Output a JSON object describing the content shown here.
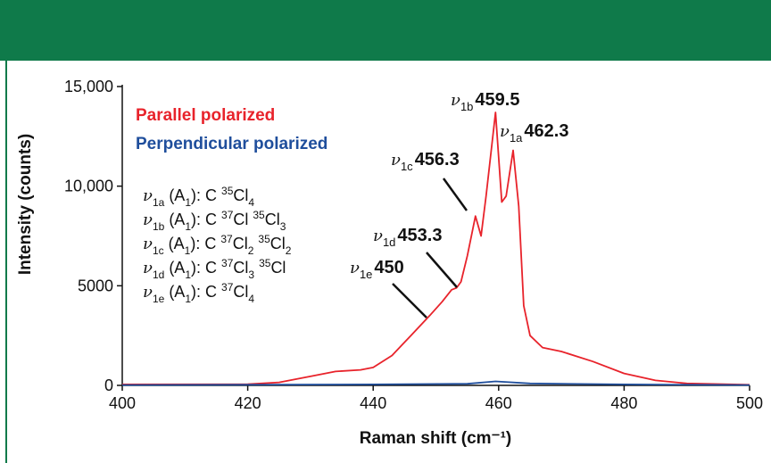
{
  "chart_data": {
    "type": "line",
    "xlabel": "Raman shift (cm⁻¹)",
    "ylabel": "Intensity (counts)",
    "xlim": [
      400,
      500
    ],
    "ylim": [
      0,
      15000
    ],
    "xticks": [
      400,
      420,
      440,
      460,
      480,
      500
    ],
    "yticks": [
      0,
      5000,
      {
        "value": 10000,
        "label": "10,000"
      },
      {
        "value": 15000,
        "label": "15,000"
      }
    ],
    "series": [
      {
        "name": "Parallel polarized",
        "color": "#e8232b",
        "x": [
          400,
          420,
          425,
          430,
          434,
          438,
          440,
          443,
          446,
          449,
          451,
          452.5,
          453.3,
          454,
          455,
          456.3,
          457.2,
          458,
          459.5,
          460.5,
          461.2,
          462.3,
          463.2,
          464,
          465,
          467,
          470,
          475,
          480,
          485,
          490,
          500
        ],
        "values": [
          50,
          60,
          150,
          450,
          700,
          780,
          900,
          1500,
          2500,
          3500,
          4200,
          4800,
          4900,
          5200,
          6500,
          8500,
          7500,
          9500,
          13700,
          9200,
          9500,
          11800,
          9000,
          4000,
          2500,
          1900,
          1700,
          1200,
          600,
          250,
          100,
          30
        ]
      },
      {
        "name": "Perpendicular polarized",
        "color": "#1f4e9c",
        "x": [
          400,
          440,
          455,
          459.5,
          465,
          480,
          500
        ],
        "values": [
          20,
          50,
          80,
          200,
          100,
          50,
          20
        ]
      }
    ],
    "symbol": "ν",
    "annotations": [
      {
        "subscript": "1b",
        "label": "459.5"
      },
      {
        "subscript": "1a",
        "label": "462.3"
      },
      {
        "subscript": "1c",
        "label": "456.3"
      },
      {
        "subscript": "1d",
        "label": "453.3"
      },
      {
        "subscript": "1e",
        "label": "450"
      }
    ],
    "assignments": [
      [
        {
          "t": "ν"
        },
        {
          "sub": "1a"
        },
        {
          "t": " (A"
        },
        {
          "sub": "1"
        },
        {
          "t": "): C "
        },
        {
          "sup": "35"
        },
        {
          "t": "Cl"
        },
        {
          "sub": "4"
        }
      ],
      [
        {
          "t": "ν"
        },
        {
          "sub": "1b"
        },
        {
          "t": " (A"
        },
        {
          "sub": "1"
        },
        {
          "t": "): C "
        },
        {
          "sup": "37"
        },
        {
          "t": "Cl "
        },
        {
          "sup": "35"
        },
        {
          "t": "Cl"
        },
        {
          "sub": "3"
        }
      ],
      [
        {
          "t": "ν"
        },
        {
          "sub": "1c"
        },
        {
          "t": " (A"
        },
        {
          "sub": "1"
        },
        {
          "t": "): C "
        },
        {
          "sup": "37"
        },
        {
          "t": "Cl"
        },
        {
          "sub": "2"
        },
        {
          "t": " "
        },
        {
          "sup": "35"
        },
        {
          "t": "Cl"
        },
        {
          "sub": "2"
        }
      ],
      [
        {
          "t": "ν"
        },
        {
          "sub": "1d"
        },
        {
          "t": " (A"
        },
        {
          "sub": "1"
        },
        {
          "t": "): C "
        },
        {
          "sup": "37"
        },
        {
          "t": "Cl"
        },
        {
          "sub": "3"
        },
        {
          "t": " "
        },
        {
          "sup": "35"
        },
        {
          "t": "Cl"
        }
      ],
      [
        {
          "t": "ν"
        },
        {
          "sub": "1e"
        },
        {
          "t": " (A"
        },
        {
          "sub": "1"
        },
        {
          "t": "): C "
        },
        {
          "sup": "37"
        },
        {
          "t": "Cl"
        },
        {
          "sub": "4"
        }
      ]
    ]
  }
}
